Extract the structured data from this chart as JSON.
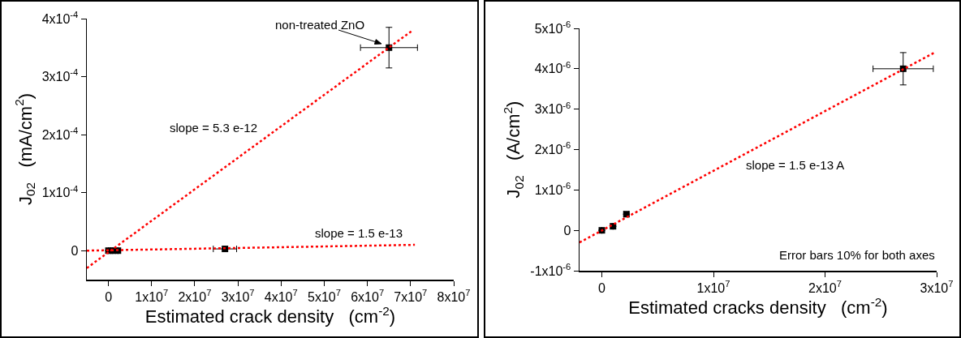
{
  "chart_data": [
    {
      "type": "scatter",
      "xlabel": "Estimated crack density   (cm$^{-2}$)",
      "ylabel": "J$_{02}$   (mA/cm$^{2}$)",
      "xlim": [
        -5000000,
        80000000
      ],
      "ylim": [
        -5e-05,
        0.0004
      ],
      "xticks": [
        {
          "value": 0,
          "label": "0"
        },
        {
          "value": 10000000,
          "label": "1x10$^{7}$"
        },
        {
          "value": 20000000,
          "label": "2x10$^{7}$"
        },
        {
          "value": 30000000,
          "label": "3x10$^{7}$"
        },
        {
          "value": 40000000,
          "label": "4x10$^{7}$"
        },
        {
          "value": 50000000,
          "label": "5x10$^{7}$"
        },
        {
          "value": 60000000,
          "label": "6x10$^{7}$"
        },
        {
          "value": 70000000,
          "label": "7x10$^{7}$"
        },
        {
          "value": 80000000,
          "label": "8x10$^{7}$"
        }
      ],
      "yticks": [
        {
          "value": 0,
          "label": "0"
        },
        {
          "value": 0.0001,
          "label": "1x10$^{-4}$"
        },
        {
          "value": 0.0002,
          "label": "2x10$^{-4}$"
        },
        {
          "value": 0.0003,
          "label": "3x10$^{-4}$"
        },
        {
          "value": 0.0004,
          "label": "4x10$^{-4}$"
        }
      ],
      "grid": false,
      "series": [
        {
          "type": "scatter",
          "color": "#000000",
          "marker": "square",
          "x": [
            0,
            1000000,
            2200000,
            27000000,
            65000000
          ],
          "values": [
            0,
            0,
            0,
            3e-06,
            0.00035
          ],
          "errors": [
            null,
            null,
            null,
            null,
            3.5e-05
          ],
          "xerrors": [
            null,
            null,
            null,
            2700000,
            6600000
          ]
        },
        {
          "type": "line",
          "color": "#ff0000",
          "line_style": "dotted",
          "x": [
            -5000000,
            70500000
          ],
          "values": [
            -3e-05,
            0.00038
          ]
        },
        {
          "type": "line",
          "color": "#ff0000",
          "line_style": "dotted",
          "x": [
            -5000000,
            71000000
          ],
          "values": [
            0,
            1e-05
          ]
        }
      ],
      "annotations": [
        {
          "text": "non-treated ZnO",
          "x": 65000000,
          "y": 0.00035
        },
        "slope = 5.3 e-12",
        "slope = 1.5 e-13"
      ]
    },
    {
      "type": "scatter",
      "xlabel": "Estimated cracks density   (cm$^{-2}$)",
      "ylabel": "J$_{02}$   (A/cm$^{2}$)",
      "xlim": [
        -2000000,
        30000000
      ],
      "ylim": [
        -1e-06,
        5e-06
      ],
      "xticks": [
        {
          "value": 0,
          "label": "0"
        },
        {
          "value": 10000000,
          "label": "1x10$^{7}$"
        },
        {
          "value": 20000000,
          "label": "2x10$^{7}$"
        },
        {
          "value": 30000000,
          "label": "3x10$^{7}$"
        }
      ],
      "yticks": [
        {
          "value": -1e-06,
          "label": "-1x10$^{-6}$"
        },
        {
          "value": 0,
          "label": "0"
        },
        {
          "value": 1e-06,
          "label": "1x10$^{-6}$"
        },
        {
          "value": 2e-06,
          "label": "2x10$^{-6}$"
        },
        {
          "value": 3e-06,
          "label": "3x10$^{-6}$"
        },
        {
          "value": 4e-06,
          "label": "4x10$^{-6}$"
        },
        {
          "value": 5e-06,
          "label": "5x10$^{-6}$"
        }
      ],
      "grid": false,
      "series": [
        {
          "type": "scatter",
          "color": "#000000",
          "marker": "square",
          "x": [
            0,
            1000000,
            2200000,
            27000000
          ],
          "values": [
            0,
            1e-07,
            4e-07,
            4e-06
          ],
          "errors": [
            null,
            null,
            null,
            4e-07
          ],
          "xerrors": [
            null,
            null,
            220000,
            2700000
          ]
        },
        {
          "type": "line",
          "color": "#ff0000",
          "line_style": "dotted",
          "x": [
            -2000000,
            29800000
          ],
          "values": [
            -3e-07,
            4.4e-06
          ]
        }
      ],
      "annotations": [
        "slope = 1.5 e-13 A",
        "Error bars 10% for both axes"
      ]
    }
  ]
}
